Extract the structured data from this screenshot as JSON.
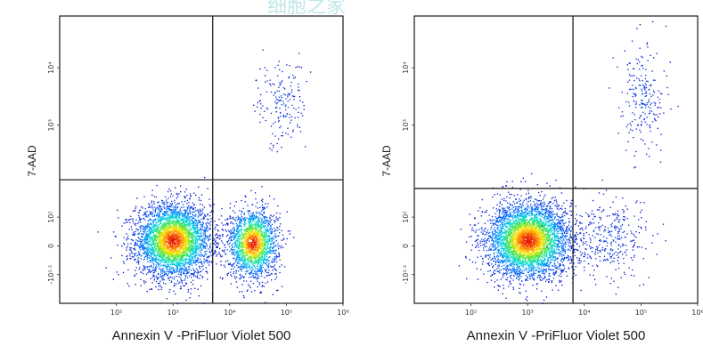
{
  "chart_data": [
    {
      "type": "scatter",
      "title": "",
      "xlabel": "Annexin V -PriFluor Violet 500",
      "ylabel": "7-AAD",
      "xscale": "biexponential",
      "yscale": "biexponential",
      "xlim": [
        -1,
        4
      ],
      "ylim": [
        -1,
        4
      ],
      "xticks": [
        {
          "value": 0,
          "label": "10²"
        },
        {
          "value": 1,
          "label": "10³"
        },
        {
          "value": 2,
          "label": "10⁴"
        },
        {
          "value": 3,
          "label": "10⁵"
        },
        {
          "value": 4,
          "label": "10⁶"
        }
      ],
      "yticks": [
        {
          "value": -0.5,
          "label": "-10²·¹"
        },
        {
          "value": 0,
          "label": "0"
        },
        {
          "value": 0.5,
          "label": "10²"
        },
        {
          "value": 2.1,
          "label": "10³"
        },
        {
          "value": 3.1,
          "label": "10⁴"
        }
      ],
      "gates": {
        "x": 1.7,
        "y": 1.15
      },
      "quadrant_gates": true,
      "populations": [
        {
          "name": "",
          "cx": 1.0,
          "cy": 0.1,
          "sx": 0.33,
          "sy": 0.32,
          "n": 3800
        },
        {
          "name": "",
          "cx": 2.4,
          "cy": 0.05,
          "sx": 0.22,
          "sy": 0.3,
          "n": 1900
        },
        {
          "name": "",
          "cx": 2.9,
          "cy": 2.45,
          "sx": 0.22,
          "sy": 0.38,
          "n": 180
        }
      ]
    },
    {
      "type": "scatter",
      "title": "",
      "xlabel": "Annexin V -PriFluor Violet 500",
      "ylabel": "7-AAD",
      "xscale": "biexponential",
      "yscale": "biexponential",
      "xlim": [
        -1,
        4
      ],
      "ylim": [
        -1,
        4
      ],
      "xticks": [
        {
          "value": 0,
          "label": "10²"
        },
        {
          "value": 1,
          "label": "10³"
        },
        {
          "value": 2,
          "label": "10⁴"
        },
        {
          "value": 3,
          "label": "10⁵"
        },
        {
          "value": 4,
          "label": "10⁶"
        }
      ],
      "yticks": [
        {
          "value": -0.5,
          "label": "-10²·¹"
        },
        {
          "value": 0,
          "label": "0"
        },
        {
          "value": 0.5,
          "label": "10²"
        },
        {
          "value": 2.1,
          "label": "10³"
        },
        {
          "value": 3.1,
          "label": "10⁴"
        }
      ],
      "gates": {
        "x": 1.8,
        "y": 1.0
      },
      "quadrant_gates": true,
      "populations": [
        {
          "name": "",
          "cx": 1.0,
          "cy": 0.1,
          "sx": 0.37,
          "sy": 0.33,
          "n": 4200
        },
        {
          "name": "",
          "cx": 2.4,
          "cy": 0.15,
          "sx": 0.35,
          "sy": 0.35,
          "n": 350
        },
        {
          "name": "",
          "cx": 3.0,
          "cy": 2.6,
          "sx": 0.22,
          "sy": 0.45,
          "n": 220
        }
      ]
    }
  ]
}
